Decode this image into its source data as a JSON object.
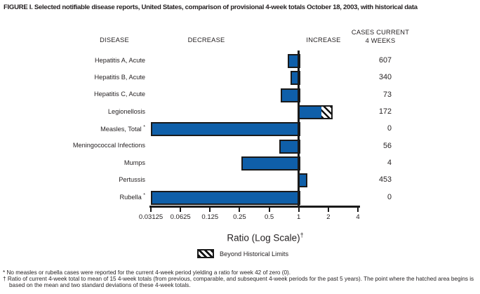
{
  "title": "FIGURE I. Selected notifiable disease reports, United States, comparison of provisional 4-week totals October 18, 2003, with historical data",
  "columns": {
    "disease": "DISEASE",
    "decrease": "DECREASE",
    "increase": "INCREASE",
    "cases_line1": "CASES CURRENT",
    "cases_line2": "4 WEEKS"
  },
  "chart_data": {
    "type": "bar",
    "orientation": "horizontal",
    "x_scale": "log2",
    "x_range": [
      0.03125,
      4
    ],
    "x_ticks": [
      "0.03125",
      "0.0625",
      "0.125",
      "0.25",
      "0.5",
      "1",
      "2",
      "4"
    ],
    "xlabel": "Ratio (Log Scale)",
    "xlabel_sup": "†",
    "baseline_ratio": 1,
    "rows": [
      {
        "label": "Hepatitis A, Acute",
        "ratio": 0.77,
        "cases": 607
      },
      {
        "label": "Hepatitis B, Acute",
        "ratio": 0.82,
        "cases": 340
      },
      {
        "label": "Hepatitis C, Acute",
        "ratio": 0.65,
        "cases": 73
      },
      {
        "label": "Legionellosis",
        "ratio": 2.2,
        "cases": 172,
        "beyond_limits": true,
        "hatch_from": 1.7
      },
      {
        "label": "Measles, Total",
        "marker": "*",
        "ratio": 0,
        "cases": 0
      },
      {
        "label": "Meningococcal Infections",
        "ratio": 0.63,
        "cases": 56
      },
      {
        "label": "Mumps",
        "ratio": 0.26,
        "cases": 4
      },
      {
        "label": "Pertussis",
        "ratio": 1.22,
        "cases": 453
      },
      {
        "label": "Rubella",
        "marker": "*",
        "ratio": 0,
        "cases": 0
      }
    ],
    "legend": {
      "label": "Beyond Historical Limits",
      "swatch": "hatched"
    }
  },
  "footnotes": [
    {
      "marker": "*",
      "text": "No measles or rubella cases were reported for the current 4-week period yielding a ratio for week 42 of zero (0)."
    },
    {
      "marker": "†",
      "text": "Ratio of current 4-week total to mean of 15 4-week totals (from previous, comparable, and subsequent 4-week periods for the past 5 years). The point where the hatched area begins is based on the mean and two standard deviations of these 4-week totals."
    }
  ],
  "colors": {
    "bar_fill": "#0f5fa9",
    "bar_border": "#1a1a1a",
    "text": "#231f20",
    "background": "#ffffff"
  }
}
